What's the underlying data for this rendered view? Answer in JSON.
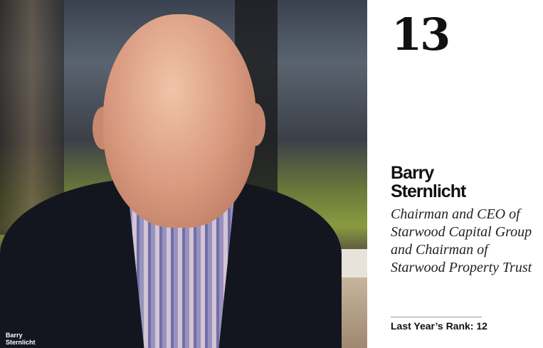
{
  "photo": {
    "alt_subject": "portrait",
    "caption": [
      "Barry",
      "Sternlicht"
    ]
  },
  "profile": {
    "rank": "13",
    "name": [
      "Barry",
      "Sternlicht"
    ],
    "title": "Chairman and CEO of Starwood Capital Group and Chairman of Starwood Property Trust",
    "last_year_rank": "Last Year’s Rank: 12"
  }
}
